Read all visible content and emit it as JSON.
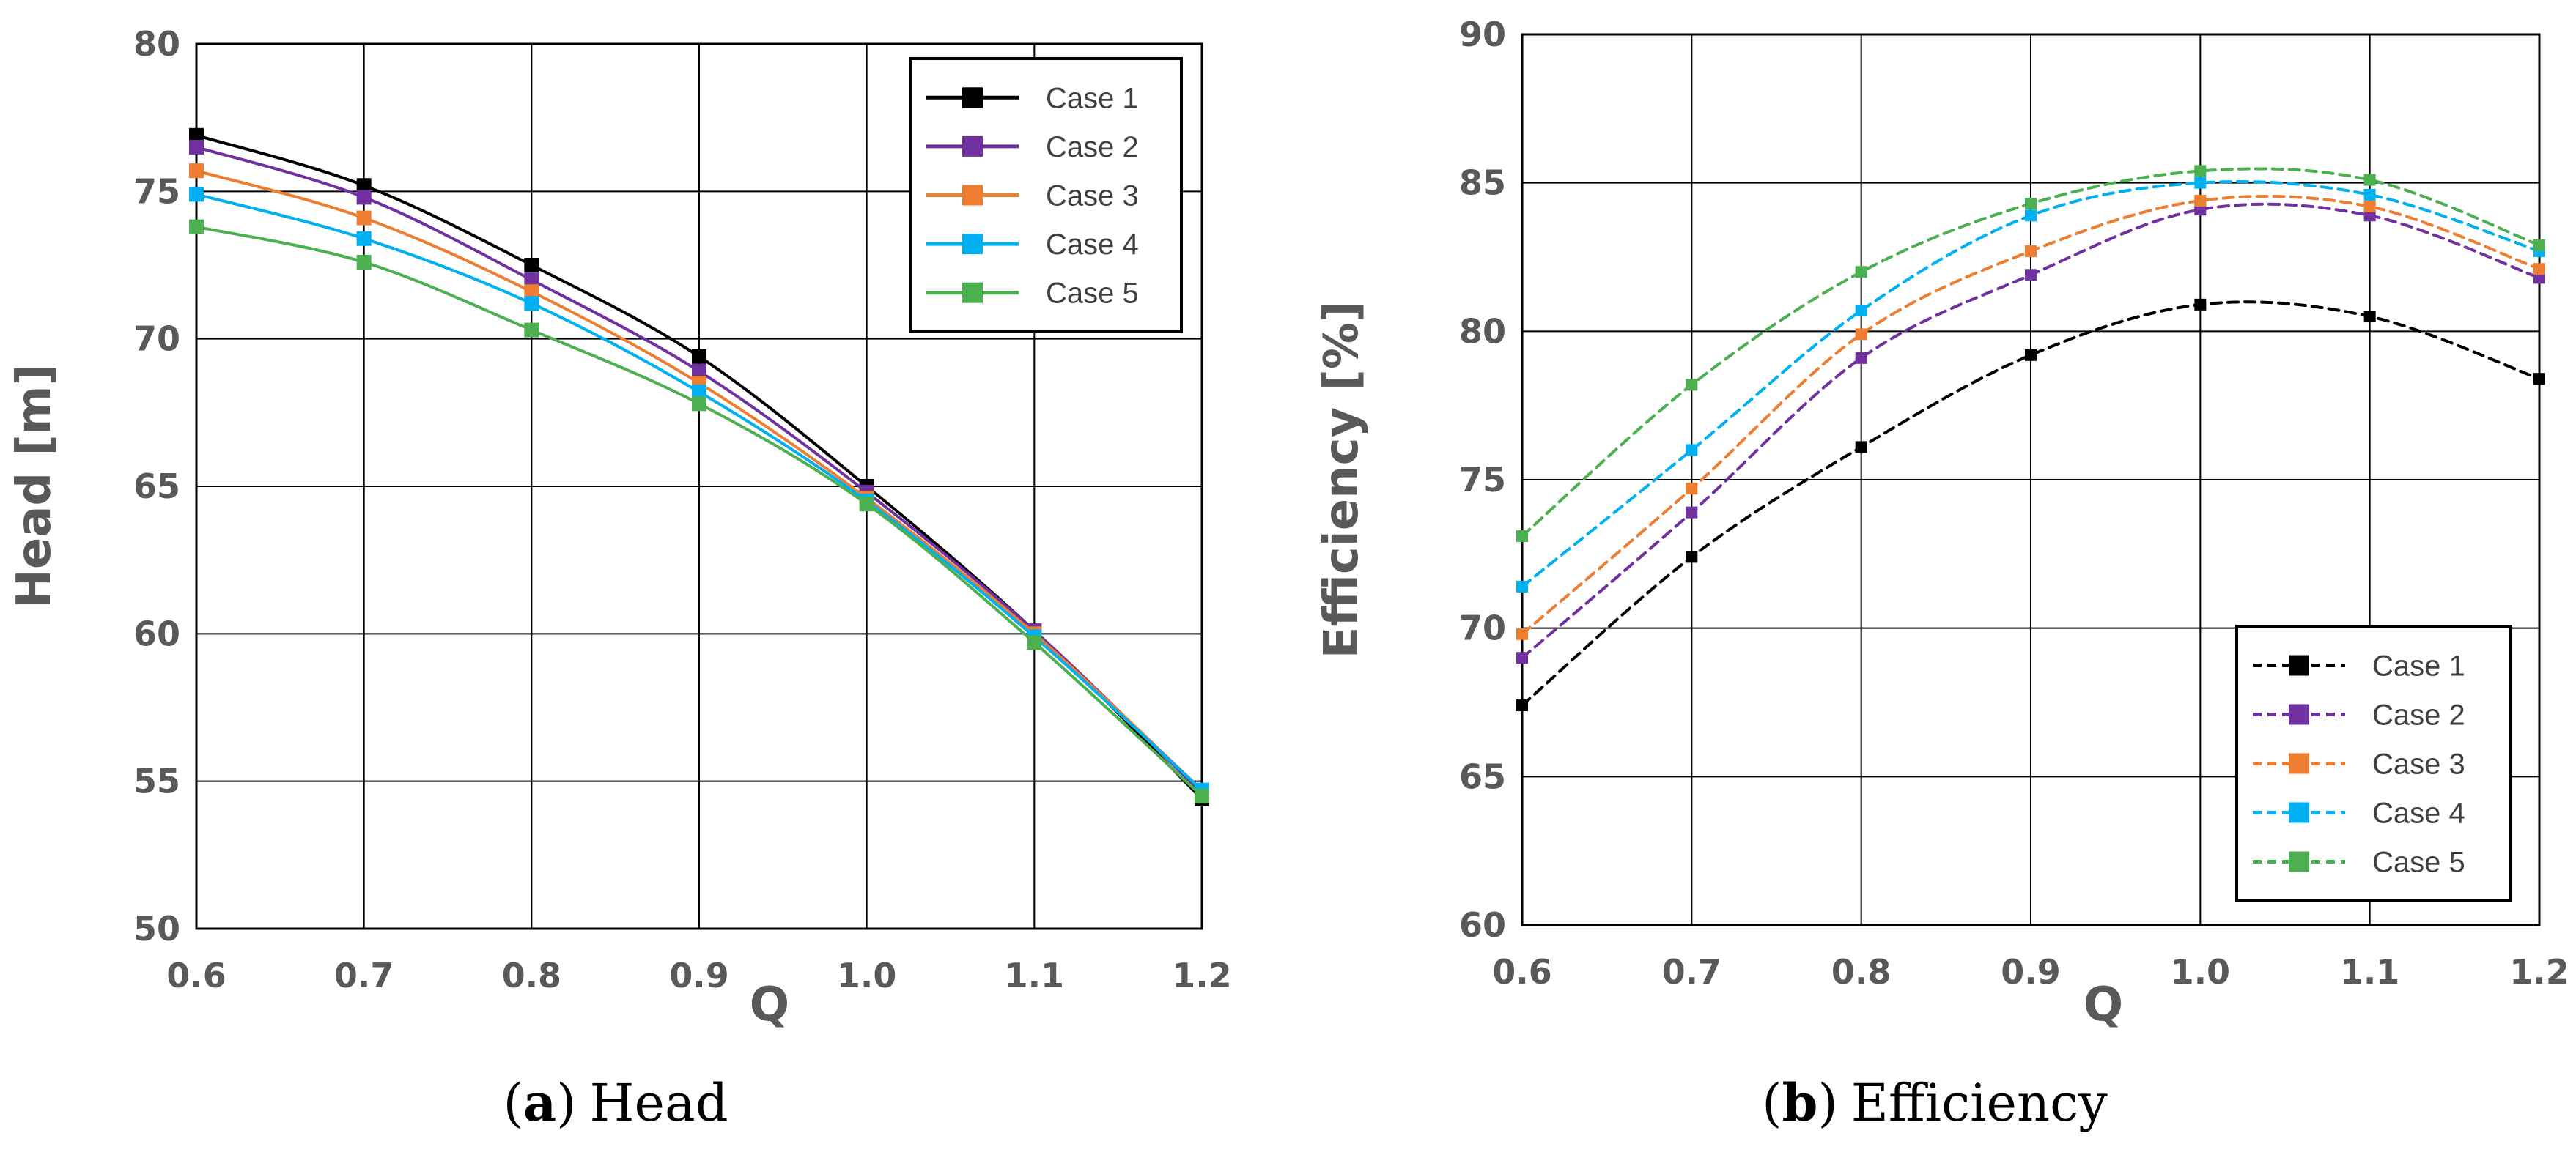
{
  "chart_data": [
    {
      "id": "head",
      "type": "line",
      "caption_letter": "a",
      "caption_text": "Head",
      "caption_open": "(",
      "caption_close": ")",
      "xlabel": "Q",
      "ylabel": "Head [m]",
      "x": [
        0.6,
        0.7,
        0.8,
        0.9,
        1.0,
        1.1,
        1.2
      ],
      "xlim": [
        0.6,
        1.2
      ],
      "ylim": [
        50,
        80
      ],
      "xticks": [
        "0.6",
        "0.7",
        "0.8",
        "0.9",
        "1.0",
        "1.1",
        "1.2"
      ],
      "yticks": [
        50,
        55,
        60,
        65,
        70,
        75,
        80
      ],
      "grid": true,
      "legend_position": "top-right",
      "line_style": "solid",
      "series": [
        {
          "name": "Case 1",
          "color": "#000000",
          "values": [
            76.9,
            75.2,
            72.5,
            69.4,
            65.0,
            60.1,
            54.4
          ]
        },
        {
          "name": "Case 2",
          "color": "#7030A0",
          "values": [
            76.5,
            74.8,
            72.0,
            68.9,
            64.8,
            60.1,
            54.6
          ]
        },
        {
          "name": "Case 3",
          "color": "#ED7D31",
          "values": [
            75.7,
            74.1,
            71.6,
            68.5,
            64.6,
            60.0,
            54.7
          ]
        },
        {
          "name": "Case 4",
          "color": "#00B0F0",
          "values": [
            74.9,
            73.4,
            71.2,
            68.2,
            64.5,
            59.9,
            54.7
          ]
        },
        {
          "name": "Case 5",
          "color": "#4CAF50",
          "values": [
            73.8,
            72.6,
            70.3,
            67.8,
            64.4,
            59.7,
            54.5
          ]
        }
      ]
    },
    {
      "id": "efficiency",
      "type": "line",
      "caption_letter": "b",
      "caption_text": "Efficiency",
      "caption_open": "(",
      "caption_close": ")",
      "xlabel": "Q",
      "ylabel": "Efficiency [%]",
      "x": [
        0.6,
        0.7,
        0.8,
        0.9,
        1.0,
        1.1,
        1.2
      ],
      "xlim": [
        0.6,
        1.2
      ],
      "ylim": [
        60,
        90
      ],
      "xticks": [
        "0.6",
        "0.7",
        "0.8",
        "0.9",
        "1.0",
        "1.1",
        "1.2"
      ],
      "yticks": [
        60,
        65,
        70,
        75,
        80,
        85,
        90
      ],
      "grid": true,
      "legend_position": "bottom-right",
      "line_style": "dashed",
      "series": [
        {
          "name": "Case 1",
          "color": "#000000",
          "values": [
            67.4,
            72.4,
            76.1,
            79.2,
            80.9,
            80.5,
            78.4
          ]
        },
        {
          "name": "Case 2",
          "color": "#7030A0",
          "values": [
            69.0,
            73.9,
            79.1,
            81.9,
            84.1,
            83.9,
            81.8
          ]
        },
        {
          "name": "Case 3",
          "color": "#ED7D31",
          "values": [
            69.8,
            74.7,
            79.9,
            82.7,
            84.4,
            84.2,
            82.1
          ]
        },
        {
          "name": "Case 4",
          "color": "#00B0F0",
          "values": [
            71.4,
            76.0,
            80.7,
            83.9,
            85.0,
            84.6,
            82.7
          ]
        },
        {
          "name": "Case 5",
          "color": "#4CAF50",
          "values": [
            73.1,
            78.2,
            82.0,
            84.3,
            85.4,
            85.1,
            82.9
          ]
        }
      ]
    }
  ]
}
